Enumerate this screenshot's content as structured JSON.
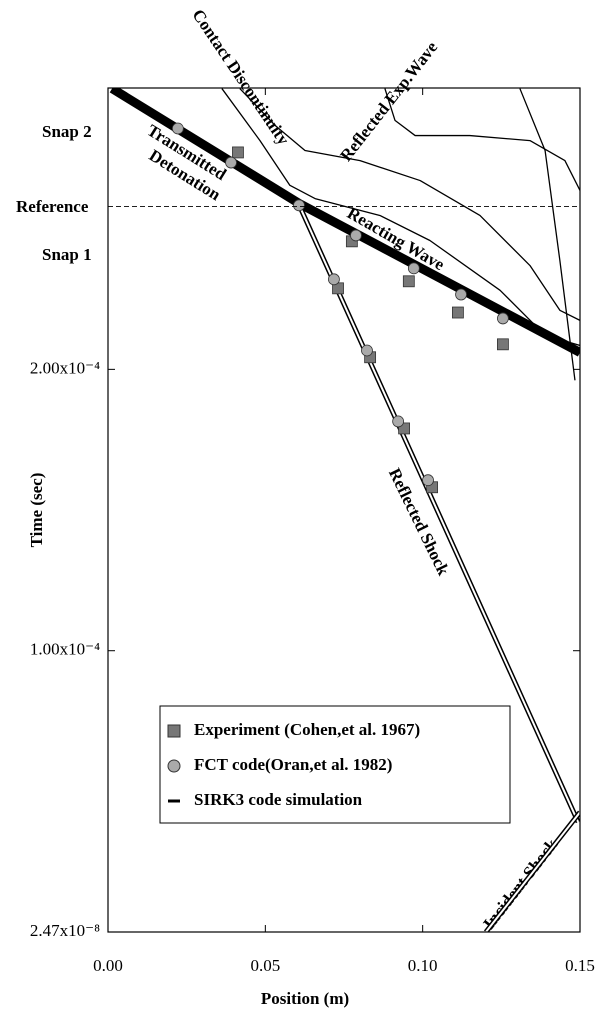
{
  "chart_data": {
    "type": "scatter",
    "x_label": "Position (m)",
    "y_label": "Time (sec)",
    "xlim": [
      0,
      0.15
    ],
    "ylim": [
      2.47e-08,
      0.0003
    ],
    "xticks": [
      {
        "value": 0,
        "label": "0.00"
      },
      {
        "value": 0.05,
        "label": "0.05"
      },
      {
        "value": 0.1,
        "label": "0.10"
      },
      {
        "value": 0.15,
        "label": "0.15"
      }
    ],
    "yticks": [
      {
        "value": 2.47e-08,
        "label": "2.47x10⁻⁸"
      },
      {
        "value": 0.0001,
        "label": "1.00x10⁻⁴"
      },
      {
        "value": 0.0002,
        "label": "2.00x10⁻⁴"
      }
    ],
    "reference": {
      "label": "Reference",
      "value": 0.0002579
    },
    "snap_labels": [
      "Snap 2",
      "Snap 1"
    ],
    "annotations": [
      "Contact Discontinuity",
      "Reflected Exp.Wave",
      "Transmitted",
      "Detonation",
      "Reacting Wave",
      "Reflected Shock",
      "Incident Shock"
    ],
    "series": [
      {
        "name": "Experiment (Cohen,et al. 1967)",
        "marker": "square",
        "color": "#777777",
        "x": [
          0.0413,
          0.0775,
          0.0956,
          0.1112,
          0.1255,
          0.0731,
          0.0833,
          0.0941,
          0.103
        ],
        "y": [
          0.0002771,
          0.0002455,
          0.0002313,
          0.0002202,
          0.0002089,
          0.0002288,
          0.0002043,
          0.000179,
          0.0001581
        ]
      },
      {
        "name": "FCT code(Oran,et al. 1982)",
        "marker": "circle",
        "color": "#aaaaaa",
        "x": [
          0.0222,
          0.0391,
          0.0607,
          0.0788,
          0.0972,
          0.1122,
          0.1255,
          0.0718,
          0.0823,
          0.0922,
          0.1017
        ],
        "y": [
          0.0002856,
          0.0002735,
          0.0002583,
          0.0002476,
          0.0002359,
          0.0002266,
          0.0002181,
          0.000232,
          0.0002067,
          0.0001815,
          0.0001606
        ]
      },
      {
        "name": "SIRK3 code simulation",
        "marker": "line",
        "color": "#000000",
        "lines": [
          {
            "style": "thick",
            "x": [
              0.0013,
              0.0607,
              0.15
            ],
            "y": [
              0.0002998,
              0.000259,
              0.000206
            ]
          },
          {
            "style": "double",
            "x": [
              0.0601,
              0.1494
            ],
            "y": [
              0.00026,
              3.91e-05
            ]
          },
          {
            "style": "double",
            "x": [
              0.1201,
              0.15
            ],
            "y": [
              2.47e-08,
              4.26e-05
            ]
          },
          {
            "style": "thin",
            "x": [
              0.0362,
              0.0483,
              0.0578,
              0.0658,
              0.0864,
              0.1023,
              0.1246,
              0.1389,
              0.15
            ],
            "y": [
              0.0002998,
              0.0002813,
              0.0002654,
              0.0002607,
              0.0002547,
              0.0002458,
              0.0002281,
              0.0002121,
              0.0002085
            ]
          },
          {
            "style": "thin",
            "x": [
              0.0419,
              0.0531,
              0.0626,
              0.0801,
              0.0992,
              0.1182,
              0.1341,
              0.1436,
              0.15
            ],
            "y": [
              0.0002998,
              0.0002867,
              0.0002778,
              0.0002742,
              0.0002671,
              0.0002547,
              0.0002369,
              0.000221,
              0.0002174
            ]
          },
          {
            "style": "thin",
            "x": [
              0.088,
              0.0912,
              0.0976,
              0.115,
              0.1341,
              0.1452,
              0.15
            ],
            "y": [
              0.0002998,
              0.0002885,
              0.0002831,
              0.0002831,
              0.0002813,
              0.0002742,
              0.0002636
            ]
          },
          {
            "style": "thin",
            "x": [
              0.1309,
              0.1389,
              0.1436,
              0.1468,
              0.1484
            ],
            "y": [
              0.0002998,
              0.0002778,
              0.0002387,
              0.0002103,
              0.0001961
            ]
          }
        ]
      }
    ]
  }
}
